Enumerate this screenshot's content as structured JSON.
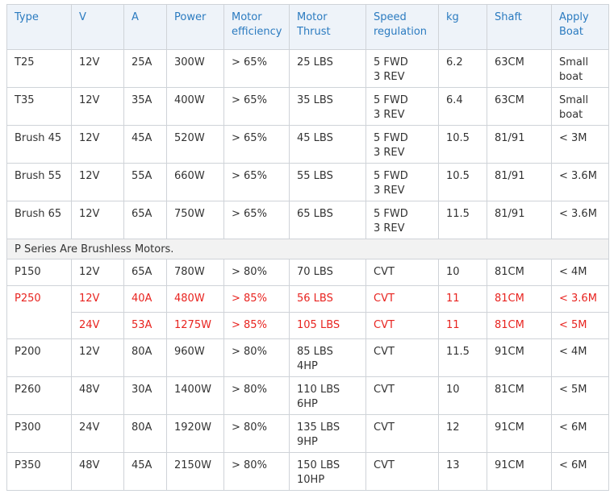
{
  "table": {
    "header": [
      "Type",
      "V",
      "A",
      "Power",
      "Motor\nefficiency",
      "Motor\nThrust",
      "Speed\nregulation",
      "kg",
      "Shaft",
      "Apply\nBoat"
    ],
    "sections": [
      {
        "rows": [
          {
            "cells": [
              "T25",
              "12V",
              "25A",
              "300W",
              "> 65%",
              "25 LBS",
              "5 FWD\n3 REV",
              "6.2",
              "63CM",
              "Small\nboat"
            ]
          },
          {
            "cells": [
              "T35",
              "12V",
              "35A",
              "400W",
              "> 65%",
              "35 LBS",
              "5 FWD\n3 REV",
              "6.4",
              "63CM",
              "Small\nboat"
            ]
          },
          {
            "cells": [
              "Brush 45",
              "12V",
              "45A",
              "520W",
              "> 65%",
              "45 LBS",
              "5 FWD\n3 REV",
              "10.5",
              "81/91",
              "< 3M"
            ]
          },
          {
            "cells": [
              "Brush 55",
              "12V",
              "55A",
              "660W",
              "> 65%",
              "55 LBS",
              "5 FWD\n3 REV",
              "10.5",
              "81/91",
              "< 3.6M"
            ]
          },
          {
            "cells": [
              "Brush 65",
              "12V",
              "65A",
              "750W",
              "> 65%",
              "65 LBS",
              "5 FWD\n3 REV",
              "11.5",
              "81/91",
              "< 3.6M"
            ]
          }
        ]
      },
      {
        "title": "P Series Are Brushless Motors.",
        "rows": [
          {
            "cells": [
              "P150",
              "12V",
              "65A",
              "780W",
              "> 80%",
              "70 LBS",
              "CVT",
              "10",
              "81CM",
              "< 4M"
            ]
          },
          {
            "color": "#e8231f",
            "cells": [
              "P250",
              "12V",
              "40A",
              "480W",
              "> 85%",
              "56 LBS",
              "CVT",
              "11",
              "81CM",
              "< 3.6M"
            ]
          },
          {
            "color": "#e8231f",
            "cells": [
              "24V",
              "53A",
              "1275W",
              "> 85%",
              "105 LBS",
              "CVT",
              "11",
              "81CM",
              "< 5M"
            ]
          },
          {
            "cells": [
              "P200",
              "12V",
              "80A",
              "960W",
              "> 80%",
              "85 LBS\n4HP",
              "CVT",
              "11.5",
              "91CM",
              "< 4M"
            ]
          },
          {
            "cells": [
              "P260",
              "48V",
              "30A",
              "1400W",
              "> 80%",
              "110 LBS\n6HP",
              "CVT",
              "10",
              "81CM",
              "< 5M"
            ]
          },
          {
            "cells": [
              "P300",
              "24V",
              "80A",
              "1920W",
              "> 80%",
              "135 LBS\n9HP",
              "CVT",
              "12",
              "91CM",
              "< 6M"
            ]
          },
          {
            "cells": [
              "P350",
              "48V",
              "45A",
              "2150W",
              "> 80%",
              "150 LBS\n10HP",
              "CVT",
              "13",
              "91CM",
              "< 6M"
            ]
          }
        ]
      }
    ]
  }
}
